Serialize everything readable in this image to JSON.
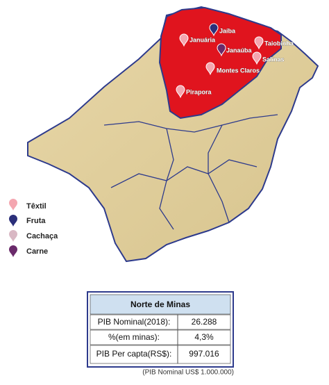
{
  "map": {
    "cities": [
      "Januária",
      "Jaíba",
      "Janaúba",
      "Taiobinha",
      "Salinas",
      "Montes Claros",
      "Pirapora"
    ]
  },
  "legend": {
    "items": [
      "Têxtil",
      "Fruta",
      "Cachaça",
      "Carne"
    ]
  },
  "table": {
    "title": "Norte de Minas",
    "rows": [
      [
        "PIB Nominal(2018):",
        "26.288"
      ],
      [
        "%(em minas):",
        "4,3%"
      ],
      [
        "PIB Per capta(RS$):",
        "997.016"
      ]
    ]
  },
  "note": "(PIB Nominal US$ 1.000.000)"
}
